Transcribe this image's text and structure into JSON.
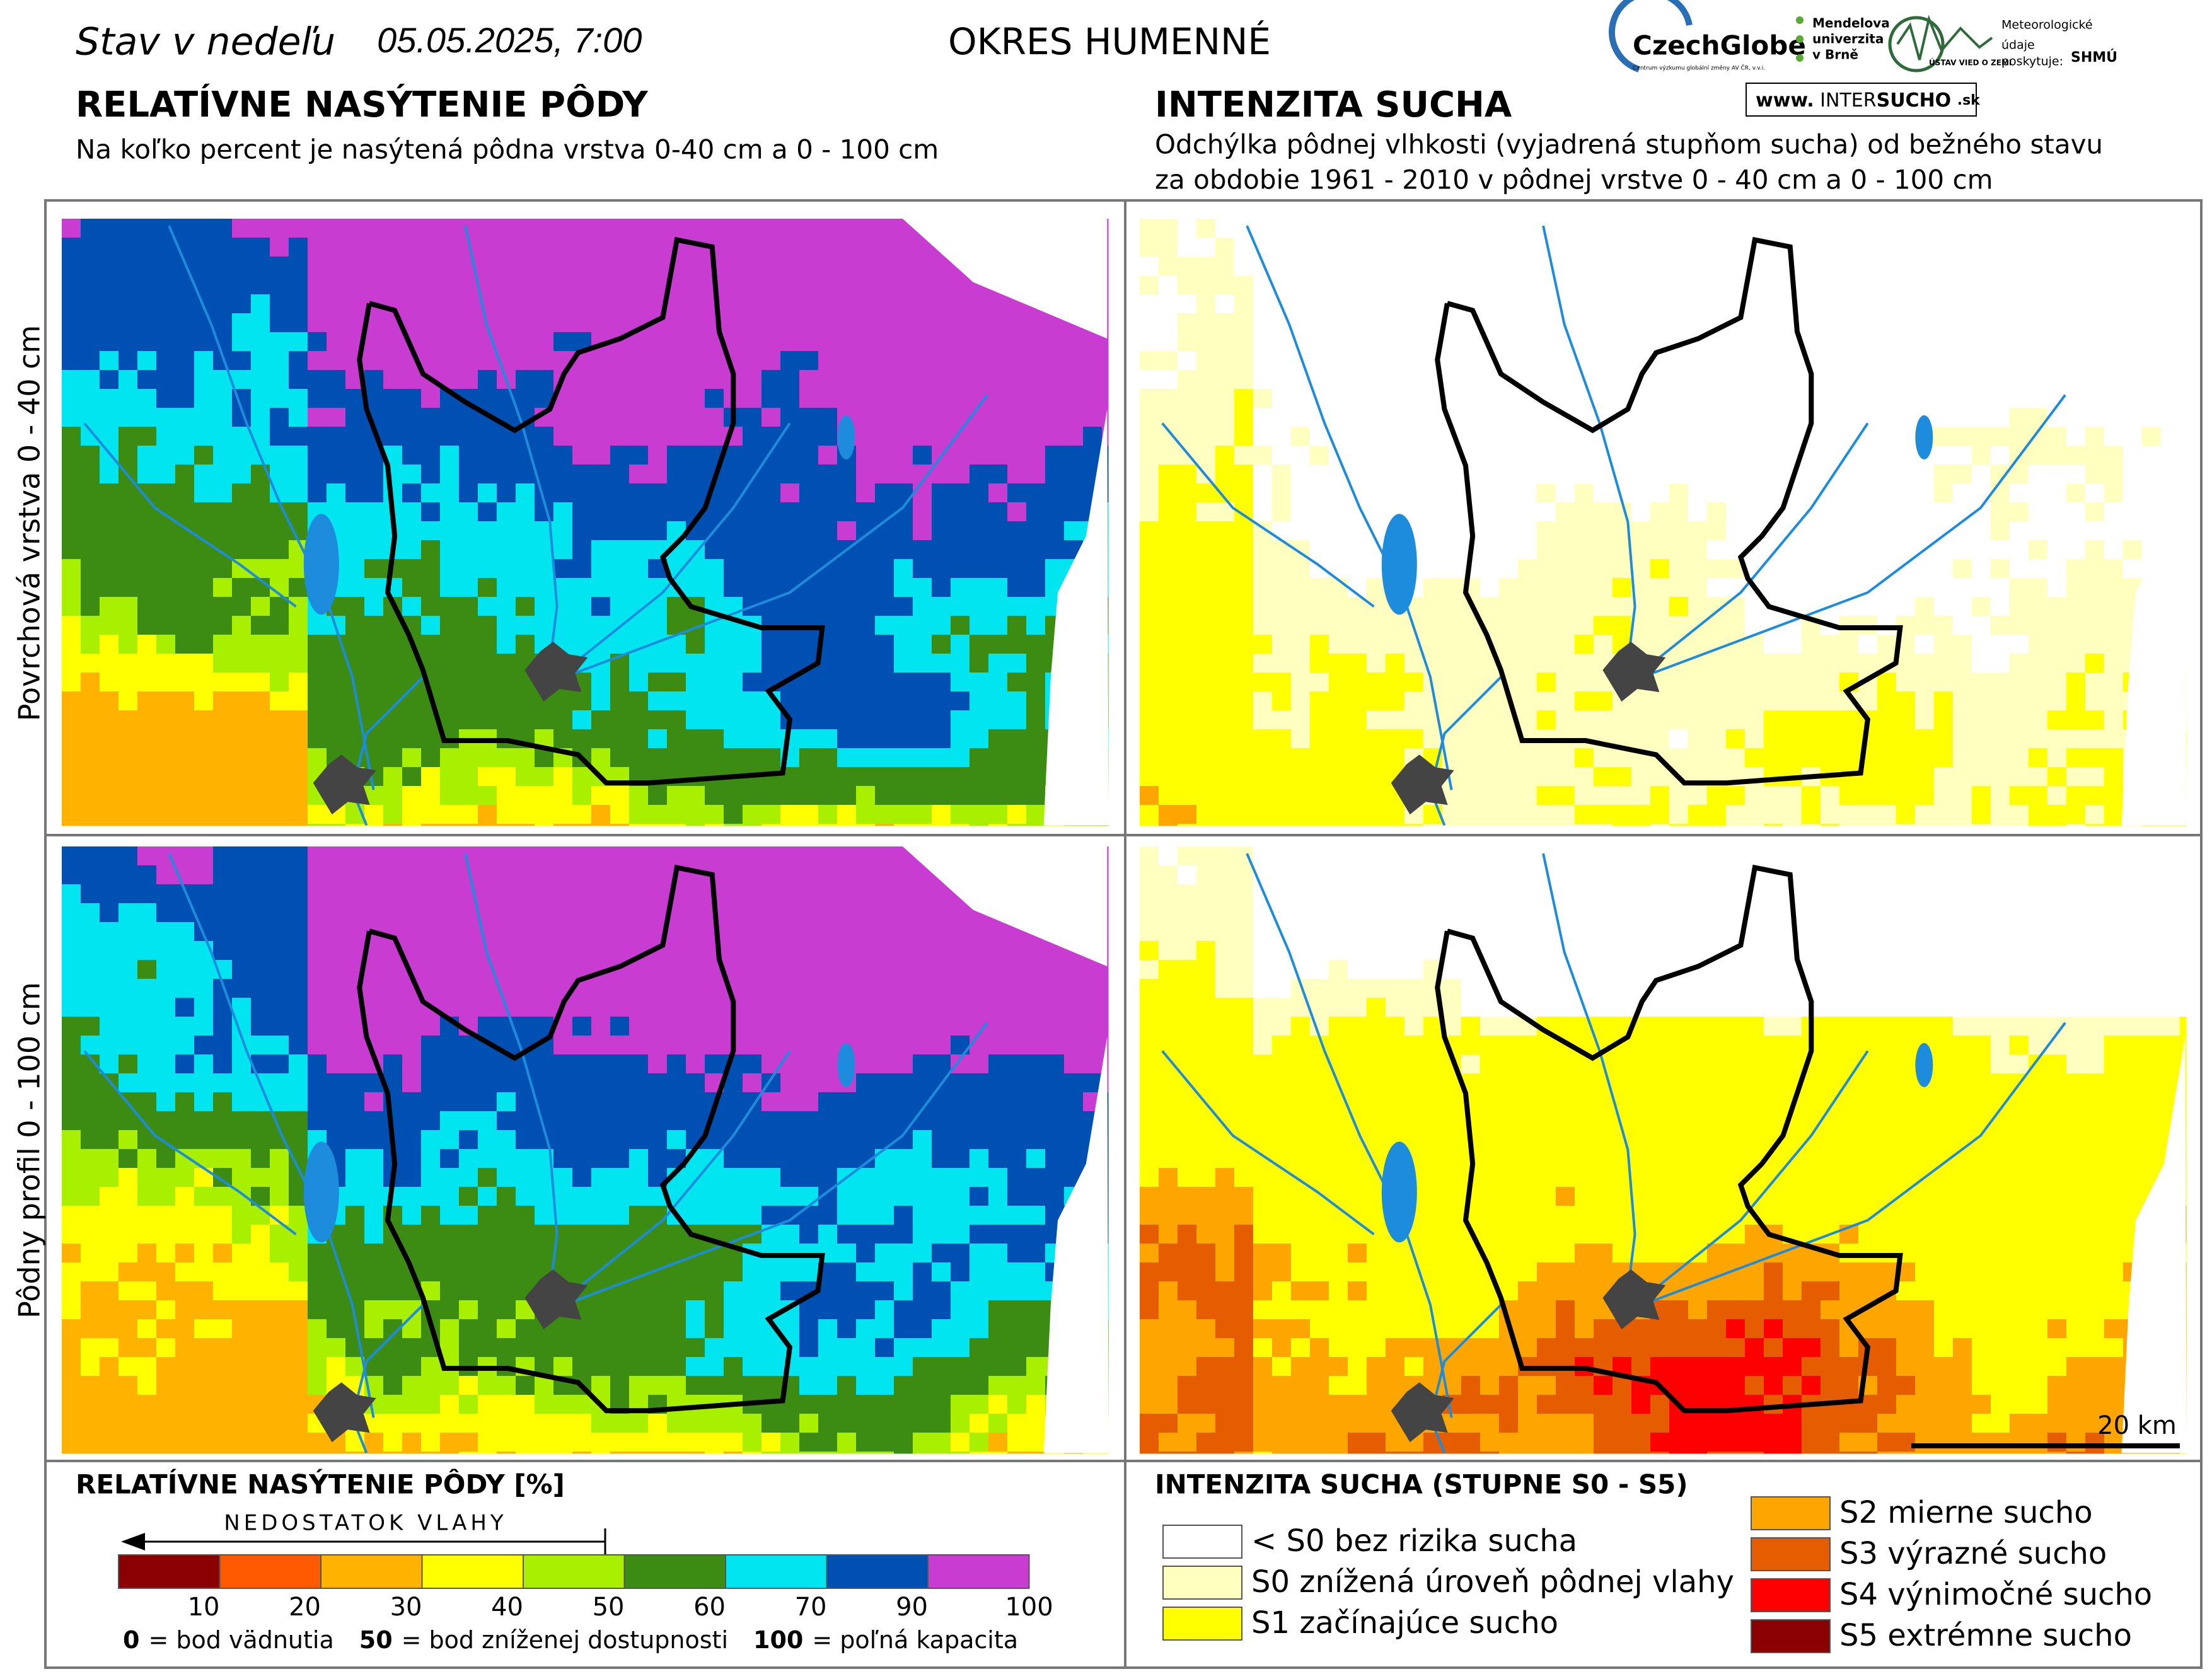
{
  "header": {
    "status_label": "Stav v nedeľu",
    "date": "05.05.2025, 7:00",
    "district": "OKRES HUMENNÉ",
    "logos": {
      "czechglobe": "CzechGlobe",
      "czechglobe_sub": "Centrum výzkumu globální změny AV ČR, v.v.i.",
      "mendel": [
        "Mendelova",
        "univerzita",
        "v Brně"
      ],
      "uvz": "ÚSTAV VIED O ZEMI",
      "meteo": [
        "Meteorologické",
        "údaje",
        "poskytuje:"
      ],
      "shmu": "SHMÚ",
      "intersucho": [
        "www.",
        "INTER",
        "SUCHO",
        ".sk"
      ]
    }
  },
  "left": {
    "title": "RELATÍVNE NASÝTENIE PÔDY",
    "subtitle": "Na koľko percent je nasýtená pôdna vrstva 0-40 cm a 0 - 100 cm"
  },
  "right": {
    "title": "INTENZITA SUCHA",
    "subtitle": [
      "Odchýlka pôdnej vlhkosti (vyjadrená stupňom sucha) od bežného stavu",
      "za obdobie 1961 - 2010 v pôdnej vrstve 0 - 40 cm a 0 - 100 cm"
    ]
  },
  "rows": [
    "Povrchová vrstva 0 - 40 cm",
    "Pôdny profil 0 - 100 cm"
  ],
  "scale_bar": "20 km",
  "legend_saturation": {
    "title": "RELATÍVNE NASÝTENIE PÔDY [%]",
    "arrow": "NEDOSTATOK VLAHY",
    "ticks": [
      10,
      20,
      30,
      40,
      50,
      60,
      70,
      90,
      100
    ],
    "colors": [
      "#8b0000",
      "#ff5a00",
      "#ffb300",
      "#ffff00",
      "#a8f000",
      "#3c8c14",
      "#00e5f0",
      "#0050b4",
      "#c83cd2"
    ],
    "notes": [
      {
        "key": "0",
        "text": "= bod vädnutia"
      },
      {
        "key": "50",
        "text": "= bod zníženej dostupnosti"
      },
      {
        "key": "100",
        "text": "= poľná kapacita"
      }
    ]
  },
  "legend_drought": {
    "title": "INTENZITA SUCHA (STUPNE S0 - S5)",
    "items": [
      {
        "label": "< S0 bez rizika sucha",
        "color": "#ffffff"
      },
      {
        "label": "S0 znížená úroveň pôdnej vlahy",
        "color": "#ffffc0"
      },
      {
        "label": "S1 začínajúce sucho",
        "color": "#ffff00"
      },
      {
        "label": "S2 mierne sucho",
        "color": "#ffa500"
      },
      {
        "label": "S3 výrazné sucho",
        "color": "#e65c00"
      },
      {
        "label": "S4 výnimočné sucho",
        "color": "#ff0000"
      },
      {
        "label": "S5 extrémne sucho",
        "color": "#8b0000"
      }
    ]
  }
}
